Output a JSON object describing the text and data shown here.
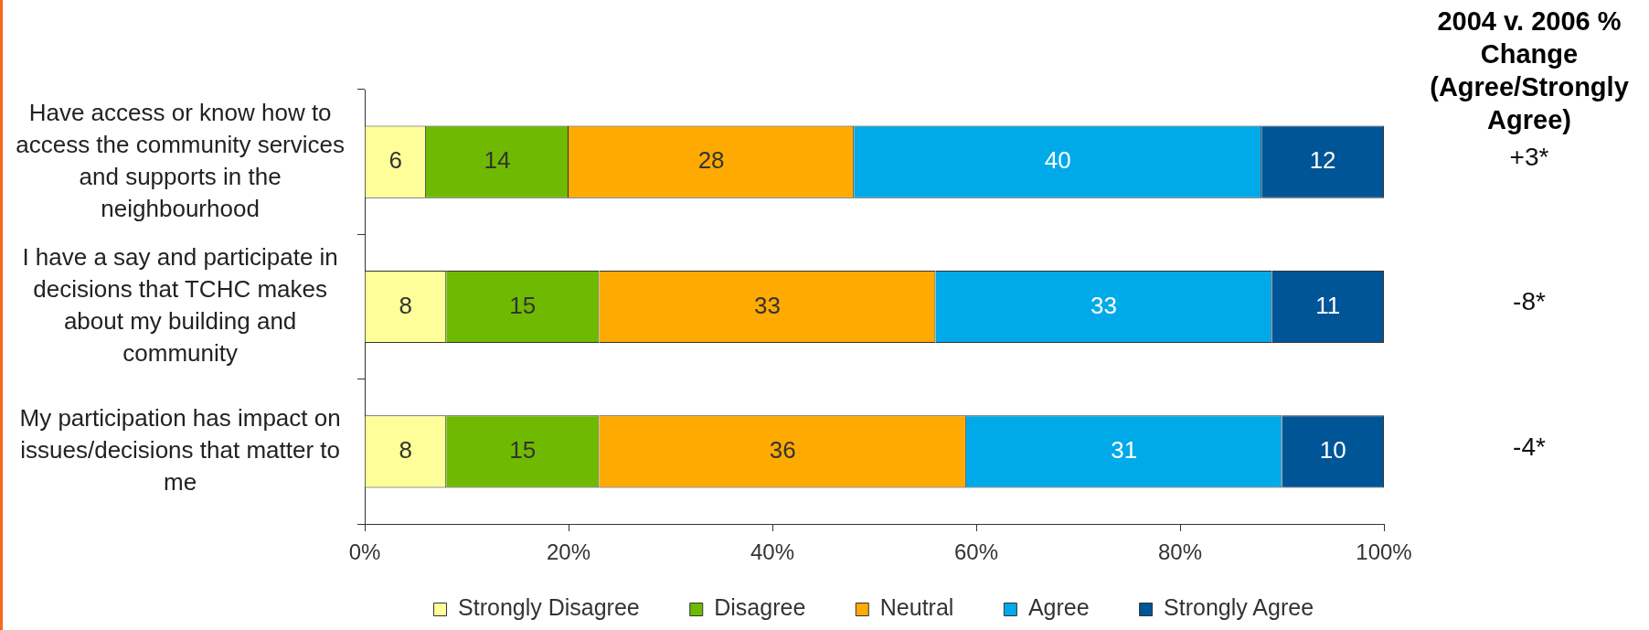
{
  "chart_data": {
    "type": "bar",
    "orientation": "horizontal",
    "stacked": true,
    "categories": [
      "Have access or know how to access the community services and supports in the neighbourhood",
      "I have a say and participate in decisions that TCHC makes about my building and community",
      "My participation has impact on issues/decisions that matter to me"
    ],
    "series": [
      {
        "name": "Strongly Disagree",
        "color": "#ffff99",
        "values": [
          6,
          8,
          8
        ]
      },
      {
        "name": "Disagree",
        "color": "#6fba00",
        "values": [
          14,
          15,
          15
        ]
      },
      {
        "name": "Neutral",
        "color": "#ffaa00",
        "values": [
          28,
          33,
          36
        ]
      },
      {
        "name": "Agree",
        "color": "#00aae9",
        "values": [
          40,
          33,
          31
        ]
      },
      {
        "name": "Strongly Agree",
        "color": "#005597",
        "values": [
          12,
          11,
          10
        ]
      }
    ],
    "xlim": [
      0,
      100
    ],
    "xticks": [
      {
        "value": 0,
        "label": "0%"
      },
      {
        "value": 20,
        "label": "20%"
      },
      {
        "value": 40,
        "label": "40%"
      },
      {
        "value": 60,
        "label": "60%"
      },
      {
        "value": 80,
        "label": "80%"
      },
      {
        "value": 100,
        "label": "100%"
      }
    ],
    "data_labels": true,
    "legend": "bottom",
    "annotations": [
      "2004 v. 2006 % Change (Agree/Strongly Agree)",
      "+3*",
      "-8*",
      "-4*"
    ]
  }
}
